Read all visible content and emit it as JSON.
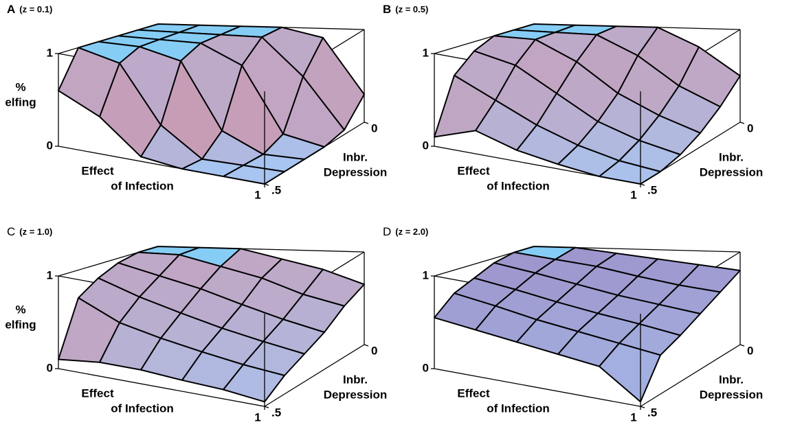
{
  "chart_data": [
    {
      "type": "surface",
      "panel": "A",
      "panel_bold": true,
      "title": "(z = 0.1)",
      "zlabel": [
        "%",
        "elfing"
      ],
      "xlabel": [
        "Effect",
        "of Infection"
      ],
      "ylabel": [
        "Inbr.",
        "Depression"
      ],
      "x": [
        0,
        0.2,
        0.4,
        0.6,
        0.8,
        1
      ],
      "y": [
        0,
        0.1,
        0.2,
        0.3,
        0.4,
        0.5
      ],
      "z": [
        [
          1,
          1,
          1,
          1,
          0.9,
          0.3
        ],
        [
          1,
          1,
          1,
          1,
          0.6,
          0.05
        ],
        [
          1,
          1,
          1,
          0.8,
          0.1,
          0
        ],
        [
          1,
          1,
          0.9,
          0.2,
          0,
          0
        ],
        [
          1,
          0.9,
          0.3,
          0,
          0,
          0
        ],
        [
          0.6,
          0.4,
          0.05,
          0,
          0,
          0
        ]
      ],
      "xlim": [
        0,
        1
      ],
      "ylim": [
        0,
        0.5
      ],
      "zlim": [
        0,
        1
      ],
      "xticks": [
        1
      ],
      "yticks": [
        0,
        {
          "value": 0.5,
          "label": ".5"
        }
      ],
      "zticks": [
        0,
        1
      ],
      "colors": {
        "low": "#a8c4f0",
        "high": "#c79db6",
        "stroke": "#000000"
      }
    },
    {
      "type": "surface",
      "panel": "B",
      "panel_bold": true,
      "title": "(z = 0.5)",
      "xlabel": [
        "Effect",
        "of Infection"
      ],
      "ylabel": [
        "Inbr.",
        "Depression"
      ],
      "x": [
        0,
        0.2,
        0.4,
        0.6,
        0.8,
        1
      ],
      "y": [
        0,
        0.1,
        0.2,
        0.3,
        0.4,
        0.5
      ],
      "z": [
        [
          1,
          1,
          1,
          1,
          0.8,
          0.5
        ],
        [
          1,
          1,
          1,
          0.8,
          0.5,
          0.3
        ],
        [
          1,
          1,
          0.8,
          0.5,
          0.3,
          0.15
        ],
        [
          0.9,
          0.8,
          0.55,
          0.3,
          0.15,
          0.05
        ],
        [
          0.7,
          0.5,
          0.3,
          0.15,
          0.05,
          0
        ],
        [
          0.1,
          0.25,
          0.12,
          0.05,
          0,
          0
        ]
      ],
      "xlim": [
        0,
        1
      ],
      "ylim": [
        0,
        0.5
      ],
      "zlim": [
        0,
        1
      ],
      "xticks": [
        1
      ],
      "yticks": [
        0,
        {
          "value": 0.5,
          "label": ".5"
        }
      ],
      "zticks": [
        0,
        1
      ],
      "colors": {
        "low": "#a8c4f0",
        "high": "#c79db6",
        "stroke": "#000000"
      }
    },
    {
      "type": "surface",
      "panel": "C",
      "panel_bold": false,
      "title": "(z = 1.0)",
      "zlabel": [
        "%",
        "elfing"
      ],
      "xlabel": [
        "Effect",
        "of Infection"
      ],
      "ylabel": [
        "Inbr.",
        "Depression"
      ],
      "x": [
        0,
        0.2,
        0.4,
        0.6,
        0.8,
        1
      ],
      "y": [
        0,
        0.1,
        0.2,
        0.3,
        0.4,
        0.5
      ],
      "z": [
        [
          1,
          1,
          1,
          0.9,
          0.8,
          0.65
        ],
        [
          1,
          1,
          0.9,
          0.8,
          0.65,
          0.55
        ],
        [
          0.95,
          0.85,
          0.75,
          0.62,
          0.5,
          0.4
        ],
        [
          0.85,
          0.7,
          0.58,
          0.47,
          0.38,
          0.3
        ],
        [
          0.7,
          0.5,
          0.4,
          0.32,
          0.25,
          0.2
        ],
        [
          0.1,
          0.15,
          0.15,
          0.12,
          0.1,
          0.05
        ]
      ],
      "xlim": [
        0,
        1
      ],
      "ylim": [
        0,
        0.5
      ],
      "zlim": [
        0,
        1
      ],
      "xticks": [
        1
      ],
      "yticks": [
        0,
        {
          "value": 0.5,
          "label": ".5"
        }
      ],
      "zticks": [
        0,
        1
      ],
      "colors": {
        "low": "#a8c4f0",
        "high": "#c79db6",
        "stroke": "#000000"
      }
    },
    {
      "type": "surface",
      "panel": "D",
      "panel_bold": false,
      "title": "(z = 2.0)",
      "xlabel": [
        "Effect",
        "of Infection"
      ],
      "ylabel": [
        "Inbr.",
        "Depression"
      ],
      "x": [
        0,
        0.2,
        0.4,
        0.6,
        0.8,
        1
      ],
      "y": [
        0,
        0.1,
        0.2,
        0.3,
        0.4,
        0.5
      ],
      "z": [
        [
          1,
          1,
          0.95,
          0.9,
          0.85,
          0.8
        ],
        [
          1,
          0.95,
          0.9,
          0.82,
          0.75,
          0.7
        ],
        [
          0.95,
          0.88,
          0.8,
          0.72,
          0.66,
          0.6
        ],
        [
          0.85,
          0.78,
          0.7,
          0.63,
          0.57,
          0.5
        ],
        [
          0.75,
          0.68,
          0.6,
          0.54,
          0.48,
          0.42
        ],
        [
          0.55,
          0.5,
          0.45,
          0.4,
          0.35,
          0.05
        ]
      ],
      "xlim": [
        0,
        1
      ],
      "ylim": [
        0,
        0.5
      ],
      "zlim": [
        0,
        1
      ],
      "xticks": [
        1
      ],
      "yticks": [
        0,
        {
          "value": 0.5,
          "label": ".5"
        }
      ],
      "zticks": [
        0,
        1
      ],
      "colors": {
        "low": "#a8c4f0",
        "high": "#9a86c0",
        "stroke": "#000000"
      }
    }
  ]
}
